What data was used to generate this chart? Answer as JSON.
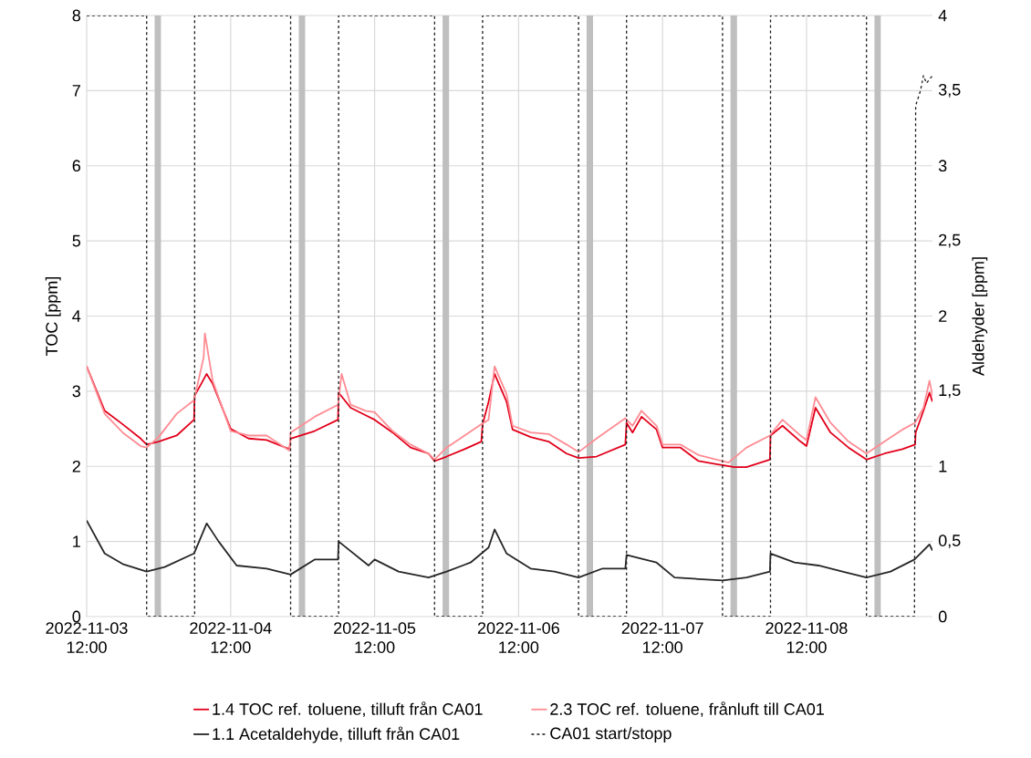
{
  "chart_data": {
    "type": "line",
    "ylabel": "TOC [ppm]",
    "y2label": "Aldehyder [ppm]",
    "xlim": [
      "2022-11-03T12:00",
      "2022-11-09T09:00"
    ],
    "xticks": [
      {
        "value": "2022-11-03T12:00",
        "label": "2022-11-03 12:00"
      },
      {
        "value": "2022-11-04T12:00",
        "label": "2022-11-04 12:00"
      },
      {
        "value": "2022-11-05T12:00",
        "label": "2022-11-05 12:00"
      },
      {
        "value": "2022-11-06T12:00",
        "label": "2022-11-06 12:00"
      },
      {
        "value": "2022-11-07T12:00",
        "label": "2022-11-07 12:00"
      },
      {
        "value": "2022-11-08T12:00",
        "label": "2022-11-08 12:00"
      }
    ],
    "ylim": [
      0,
      8
    ],
    "yticks": [
      0,
      1,
      2,
      3,
      4,
      5,
      6,
      7,
      8
    ],
    "y2lim": [
      0,
      4
    ],
    "y2ticks": [
      0,
      {
        "value": 0.5,
        "label": "0,5"
      },
      1,
      {
        "value": 1.5,
        "label": "1,5"
      },
      2,
      {
        "value": 2.5,
        "label": "2,5"
      },
      3,
      {
        "value": 3.5,
        "label": "3,5"
      },
      4
    ],
    "grid": true,
    "legend": "bottom",
    "bands": [
      {
        "axis": "x",
        "from": "2022-11-03T23:20",
        "to": "2022-11-04T00:25",
        "color": "#bfbfbf"
      },
      {
        "axis": "x",
        "from": "2022-11-04T23:20",
        "to": "2022-11-05T00:25",
        "color": "#bfbfbf"
      },
      {
        "axis": "x",
        "from": "2022-11-05T23:20",
        "to": "2022-11-06T00:25",
        "color": "#bfbfbf"
      },
      {
        "axis": "x",
        "from": "2022-11-06T23:20",
        "to": "2022-11-07T00:25",
        "color": "#bfbfbf"
      },
      {
        "axis": "x",
        "from": "2022-11-07T23:20",
        "to": "2022-11-08T00:25",
        "color": "#bfbfbf"
      },
      {
        "axis": "x",
        "from": "2022-11-08T23:20",
        "to": "2022-11-09T00:25",
        "color": "#bfbfbf"
      }
    ],
    "series": [
      {
        "name": "1.4 TOC ref. toluene, tilluft från CA01",
        "color": "#e2001a",
        "x": [
          "2022-11-03T12:00",
          "2022-11-03T15:00",
          "2022-11-03T18:00",
          "2022-11-03T21:00",
          "2022-11-03T22:00",
          "2022-11-04T00:00",
          "2022-11-04T03:00",
          "2022-11-04T05:54",
          "2022-11-04T06:00",
          "2022-11-04T08:00",
          "2022-11-04T09:00",
          "2022-11-04T12:00",
          "2022-11-04T15:00",
          "2022-11-04T18:00",
          "2022-11-04T21:48",
          "2022-11-04T22:00",
          "2022-11-05T02:00",
          "2022-11-05T05:54",
          "2022-11-05T06:00",
          "2022-11-05T08:00",
          "2022-11-05T10:30",
          "2022-11-05T12:00",
          "2022-11-05T15:00",
          "2022-11-05T18:00",
          "2022-11-05T21:00",
          "2022-11-05T22:00",
          "2022-11-06T00:00",
          "2022-11-06T03:00",
          "2022-11-06T05:48",
          "2022-11-06T06:00",
          "2022-11-06T07:00",
          "2022-11-06T08:00",
          "2022-11-06T10:00",
          "2022-11-06T11:00",
          "2022-11-06T14:00",
          "2022-11-06T17:00",
          "2022-11-06T20:00",
          "2022-11-06T22:00",
          "2022-11-07T01:00",
          "2022-11-07T05:48",
          "2022-11-07T06:00",
          "2022-11-07T07:00",
          "2022-11-07T08:30",
          "2022-11-07T11:00",
          "2022-11-07T12:00",
          "2022-11-07T15:00",
          "2022-11-07T18:00",
          "2022-11-07T21:00",
          "2022-11-08T00:00",
          "2022-11-08T02:00",
          "2022-11-08T05:54",
          "2022-11-08T06:00",
          "2022-11-08T08:00",
          "2022-11-08T11:00",
          "2022-11-08T12:00",
          "2022-11-08T13:30",
          "2022-11-08T16:00",
          "2022-11-08T19:00",
          "2022-11-08T22:00",
          "2022-11-09T01:00",
          "2022-11-09T04:00",
          "2022-11-09T06:06",
          "2022-11-09T06:12",
          "2022-11-09T07:30",
          "2022-11-09T08:30",
          "2022-11-09T09:00"
        ],
        "values": [
          3.33,
          2.74,
          2.56,
          2.37,
          2.29,
          2.33,
          2.41,
          2.62,
          2.94,
          3.23,
          3.1,
          2.5,
          2.37,
          2.35,
          2.23,
          2.37,
          2.47,
          2.62,
          2.98,
          2.78,
          2.68,
          2.62,
          2.45,
          2.25,
          2.17,
          2.07,
          2.13,
          2.23,
          2.33,
          2.56,
          2.86,
          3.23,
          2.86,
          2.49,
          2.39,
          2.33,
          2.17,
          2.11,
          2.13,
          2.29,
          2.58,
          2.45,
          2.66,
          2.49,
          2.25,
          2.25,
          2.07,
          2.03,
          1.99,
          1.99,
          2.09,
          2.41,
          2.54,
          2.33,
          2.27,
          2.78,
          2.45,
          2.25,
          2.09,
          2.17,
          2.23,
          2.29,
          2.45,
          2.74,
          2.98,
          2.86
        ]
      },
      {
        "name": "2.3 TOC ref. toluene, frånluft till CA01",
        "color": "#ff8c94",
        "x": [
          "2022-11-03T12:00",
          "2022-11-03T15:00",
          "2022-11-03T18:00",
          "2022-11-03T21:00",
          "2022-11-03T22:00",
          "2022-11-04T00:00",
          "2022-11-04T03:00",
          "2022-11-04T05:54",
          "2022-11-04T07:30",
          "2022-11-04T07:42",
          "2022-11-04T09:00",
          "2022-11-04T12:00",
          "2022-11-04T15:00",
          "2022-11-04T18:00",
          "2022-11-04T21:48",
          "2022-11-04T22:00",
          "2022-11-05T02:00",
          "2022-11-05T05:54",
          "2022-11-05T06:30",
          "2022-11-05T08:00",
          "2022-11-05T10:30",
          "2022-11-05T12:00",
          "2022-11-05T15:00",
          "2022-11-05T18:00",
          "2022-11-05T21:00",
          "2022-11-05T22:00",
          "2022-11-06T00:00",
          "2022-11-06T03:00",
          "2022-11-06T05:48",
          "2022-11-06T07:00",
          "2022-11-06T08:00",
          "2022-11-06T10:00",
          "2022-11-06T11:00",
          "2022-11-06T14:00",
          "2022-11-06T17:00",
          "2022-11-06T20:00",
          "2022-11-06T22:00",
          "2022-11-07T01:00",
          "2022-11-07T05:48",
          "2022-11-07T07:00",
          "2022-11-07T08:30",
          "2022-11-07T11:00",
          "2022-11-07T12:00",
          "2022-11-07T15:00",
          "2022-11-07T18:00",
          "2022-11-07T21:00",
          "2022-11-07T23:00",
          "2022-11-08T02:00",
          "2022-11-08T05:54",
          "2022-11-08T08:00",
          "2022-11-08T11:00",
          "2022-11-08T12:00",
          "2022-11-08T13:30",
          "2022-11-08T16:00",
          "2022-11-08T19:00",
          "2022-11-08T22:00",
          "2022-11-09T01:00",
          "2022-11-09T04:00",
          "2022-11-09T06:06",
          "2022-11-09T07:30",
          "2022-11-09T08:30",
          "2022-11-09T09:00"
        ],
        "values": [
          3.33,
          2.7,
          2.45,
          2.27,
          2.25,
          2.39,
          2.7,
          2.88,
          3.45,
          3.77,
          3.14,
          2.47,
          2.41,
          2.41,
          2.21,
          2.45,
          2.66,
          2.82,
          3.23,
          2.82,
          2.74,
          2.72,
          2.47,
          2.29,
          2.17,
          2.09,
          2.25,
          2.41,
          2.56,
          2.62,
          3.33,
          2.96,
          2.54,
          2.45,
          2.43,
          2.29,
          2.19,
          2.37,
          2.64,
          2.54,
          2.74,
          2.54,
          2.29,
          2.29,
          2.15,
          2.09,
          2.05,
          2.25,
          2.41,
          2.62,
          2.41,
          2.35,
          2.92,
          2.58,
          2.33,
          2.17,
          2.33,
          2.49,
          2.58,
          2.78,
          3.14,
          2.94
        ]
      },
      {
        "name": "1.1 Acetaldehyde, tilluft från CA01",
        "color": "#262626",
        "axis": "y2",
        "x": [
          "2022-11-03T12:00",
          "2022-11-03T15:00",
          "2022-11-03T18:00",
          "2022-11-03T22:00",
          "2022-11-04T01:00",
          "2022-11-04T05:54",
          "2022-11-04T08:00",
          "2022-11-04T10:00",
          "2022-11-04T13:00",
          "2022-11-04T18:00",
          "2022-11-04T22:00",
          "2022-11-05T02:00",
          "2022-11-05T05:54",
          "2022-11-05T06:00",
          "2022-11-05T11:00",
          "2022-11-05T12:00",
          "2022-11-05T16:00",
          "2022-11-05T21:00",
          "2022-11-06T00:00",
          "2022-11-06T04:00",
          "2022-11-06T07:00",
          "2022-11-06T08:00",
          "2022-11-06T10:00",
          "2022-11-06T14:00",
          "2022-11-06T18:00",
          "2022-11-06T22:00",
          "2022-11-07T02:00",
          "2022-11-07T05:48",
          "2022-11-07T06:00",
          "2022-11-07T09:00",
          "2022-11-07T11:00",
          "2022-11-07T14:00",
          "2022-11-07T18:00",
          "2022-11-07T22:00",
          "2022-11-08T02:00",
          "2022-11-08T05:54",
          "2022-11-08T06:00",
          "2022-11-08T10:00",
          "2022-11-08T14:00",
          "2022-11-08T18:00",
          "2022-11-08T22:00",
          "2022-11-09T02:00",
          "2022-11-09T06:00",
          "2022-11-09T08:30",
          "2022-11-09T09:00"
        ],
        "values": [
          0.64,
          0.42,
          0.35,
          0.3,
          0.33,
          0.42,
          0.62,
          0.5,
          0.34,
          0.32,
          0.28,
          0.38,
          0.38,
          0.5,
          0.34,
          0.38,
          0.3,
          0.26,
          0.3,
          0.36,
          0.46,
          0.58,
          0.42,
          0.32,
          0.3,
          0.26,
          0.32,
          0.32,
          0.41,
          0.38,
          0.36,
          0.26,
          0.25,
          0.24,
          0.26,
          0.3,
          0.42,
          0.36,
          0.34,
          0.3,
          0.26,
          0.3,
          0.38,
          0.48,
          0.44
        ]
      },
      {
        "name": "CA01 start/stopp",
        "color": "#1a1a1a",
        "line_style": "dashed",
        "x": [
          "2022-11-03T12:00",
          "2022-11-03T22:00",
          "2022-11-03T22:00",
          "2022-11-04T06:00",
          "2022-11-04T06:00",
          "2022-11-04T22:00",
          "2022-11-04T22:00",
          "2022-11-05T06:00",
          "2022-11-05T06:00",
          "2022-11-05T22:00",
          "2022-11-05T22:00",
          "2022-11-06T06:00",
          "2022-11-06T06:00",
          "2022-11-06T22:00",
          "2022-11-06T22:00",
          "2022-11-07T06:00",
          "2022-11-07T06:00",
          "2022-11-07T22:00",
          "2022-11-07T22:00",
          "2022-11-08T06:00",
          "2022-11-08T06:00",
          "2022-11-08T22:00",
          "2022-11-08T22:00",
          "2022-11-09T06:00",
          "2022-11-09T06:12",
          "2022-11-09T07:00",
          "2022-11-09T07:30",
          "2022-11-09T08:00",
          "2022-11-09T09:00"
        ],
        "values": [
          8,
          8,
          0,
          0,
          8,
          8,
          0,
          0,
          8,
          8,
          0,
          0,
          8,
          8,
          0,
          0,
          8,
          8,
          0,
          0,
          8,
          8,
          0,
          0,
          6.8,
          7.0,
          7.2,
          7.1,
          7.2
        ]
      }
    ]
  }
}
